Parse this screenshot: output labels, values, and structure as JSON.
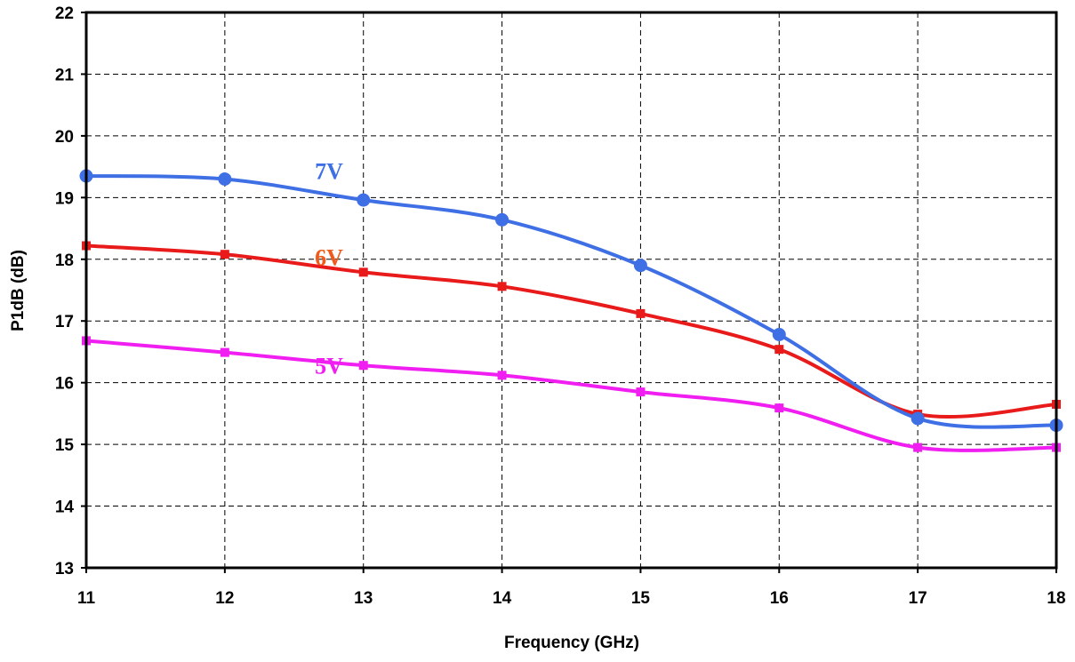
{
  "chart_data": {
    "type": "line",
    "xlabel": "Frequency (GHz)",
    "ylabel": "P1dB (dB)",
    "xlim": [
      11,
      18
    ],
    "ylim": [
      13,
      22
    ],
    "xticks": [
      "11",
      "12",
      "13",
      "14",
      "15",
      "16",
      "17",
      "18"
    ],
    "yticks": [
      "13",
      "14",
      "15",
      "16",
      "17",
      "18",
      "19",
      "20",
      "21",
      "22"
    ],
    "grid": true,
    "series": [
      {
        "name": "7V",
        "color": "#3f6fe4",
        "marker": "circle",
        "x": [
          11,
          12,
          13,
          14,
          15,
          16,
          17,
          18
        ],
        "values": [
          19.35,
          19.3,
          18.96,
          18.64,
          17.9,
          16.78,
          15.42,
          15.31
        ]
      },
      {
        "name": "6V",
        "color": "#e81a1a",
        "marker": "square",
        "x": [
          11,
          12,
          13,
          14,
          15,
          16,
          17,
          18
        ],
        "values": [
          18.22,
          18.08,
          17.79,
          17.56,
          17.12,
          16.54,
          15.49,
          15.65
        ]
      },
      {
        "name": "5V",
        "color": "#f01ef0",
        "marker": "square",
        "x": [
          11,
          12,
          13,
          14,
          15,
          16,
          17,
          18
        ],
        "values": [
          16.68,
          16.49,
          16.28,
          16.12,
          15.85,
          15.59,
          14.95,
          14.95
        ]
      }
    ],
    "label_colors": {
      "7V": "#3f6fe4",
      "6V": "#f05a1a",
      "5V": "#f01ef0"
    }
  }
}
